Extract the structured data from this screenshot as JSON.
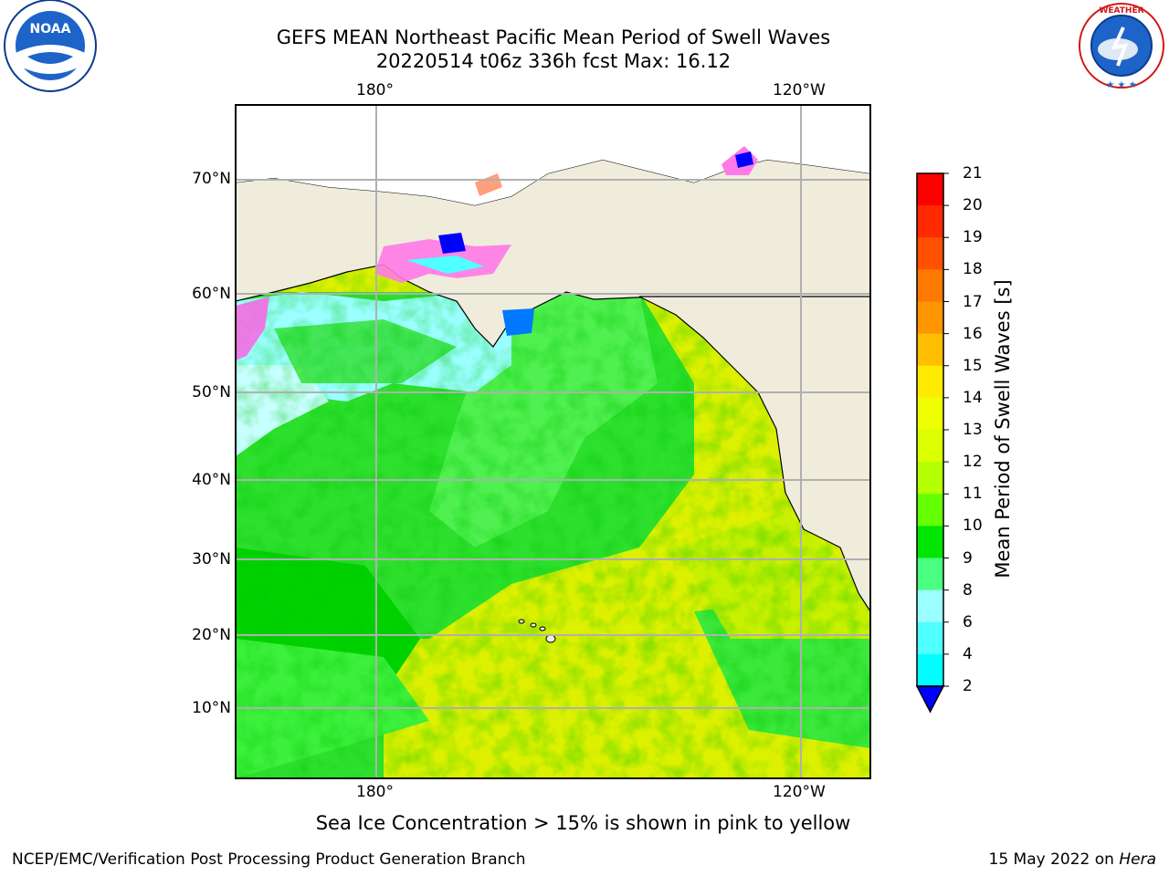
{
  "title": {
    "line1": "GEFS MEAN Northeast Pacific Mean Period of Swell Waves",
    "line2": "20220514 t06z 336h fcst   Max: 16.12"
  },
  "axes": {
    "lon_top": [
      "180°",
      "120°W"
    ],
    "lon_bottom": [
      "180°",
      "120°W"
    ],
    "lat": [
      "70°N",
      "60°N",
      "50°N",
      "40°N",
      "30°N",
      "20°N",
      "10°N"
    ]
  },
  "colorbar": {
    "title": "Mean Period of Swell Waves [s]",
    "ticks": [
      "21",
      "20",
      "19",
      "18",
      "17",
      "16",
      "15",
      "14",
      "13",
      "12",
      "11",
      "10",
      "9",
      "8",
      "6",
      "4",
      "2"
    ],
    "colors": [
      "#ff0000",
      "#ff2a00",
      "#ff5000",
      "#ff7800",
      "#ff9600",
      "#ffbe00",
      "#ffeb00",
      "#f0ff00",
      "#dcff00",
      "#b4ff00",
      "#64ff00",
      "#00e600",
      "#4bff82",
      "#9bffff",
      "#50ffff",
      "#00ffff",
      "#0078ff"
    ],
    "extend_color": "#0000ff"
  },
  "note": "Sea Ice Concentration > 15% is shown in pink to yellow",
  "footer": {
    "left": "NCEP/EMC/Verification Post Processing Product Generation Branch",
    "right_date": "15 May 2022 on ",
    "right_host": "Hera"
  },
  "logos": {
    "left": {
      "text": "NOAA",
      "ring_text": "NATIONAL OCEANIC AND ATMOSPHERIC ADMINISTRATION · U.S. DEPARTMENT OF COMMERCE"
    },
    "right": {
      "ring_text": "NATIONAL WEATHER SERVICE"
    }
  },
  "map": {
    "ocean_colors": {
      "deep_green": "#00d200",
      "green": "#3cf03c",
      "yellow": "#e6ff00",
      "yellow_green": "#c8f000",
      "cyan": "#9bffff"
    },
    "land_color": "#efecdc"
  }
}
